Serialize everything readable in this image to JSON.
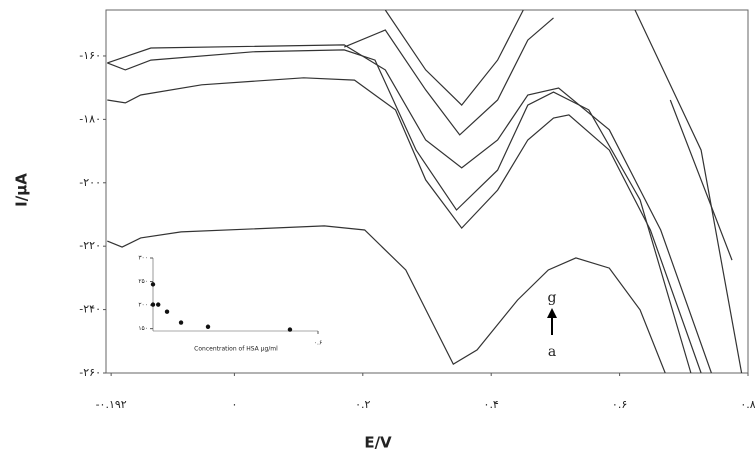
{
  "chart_data": [
    {
      "type": "line",
      "xlabel": "E/V",
      "ylabel": "I/μA",
      "xlim": [
        -0.2,
        0.8
      ],
      "ylim": [
        -260,
        -145.5
      ],
      "xticks": [
        {
          "value": -0.192,
          "label": "-۰.۱۹۲"
        },
        {
          "value": 0,
          "label": "۰"
        },
        {
          "value": 0.2,
          "label": "۰.۲"
        },
        {
          "value": 0.4,
          "label": "۰.۴"
        },
        {
          "value": 0.6,
          "label": "۰.۶"
        },
        {
          "value": 0.8,
          "label": "۰.۸"
        }
      ],
      "yticks": [
        {
          "value": -160,
          "label": "-۱۶۰"
        },
        {
          "value": -180,
          "label": "-۱۸۰"
        },
        {
          "value": -200,
          "label": "-۲۰۰"
        },
        {
          "value": -220,
          "label": "-۲۲۰"
        },
        {
          "value": -240,
          "label": "-۲۴۰"
        },
        {
          "value": -260,
          "label": "-۲۶۰"
        }
      ],
      "series": [
        {
          "color": "#333333",
          "x": [
            -0.198,
            -0.175,
            -0.146,
            -0.083,
            0.14,
            0.203,
            0.267,
            0.314,
            0.341,
            0.378,
            0.441,
            0.489,
            0.532,
            0.584,
            0.632,
            0.671
          ],
          "values": [
            -218.4,
            -220.3,
            -217.4,
            -215.5,
            -213.6,
            -214.9,
            -227.5,
            -246.4,
            -257.2,
            -252.7,
            -237,
            -227.5,
            -223.7,
            -226.9,
            -240.1,
            -260
          ]
        },
        {
          "color": "#333333",
          "x": [
            -0.198,
            -0.17,
            -0.146,
            -0.051,
            0.108,
            0.187,
            0.251,
            0.298,
            0.354,
            0.41,
            0.457,
            0.497,
            0.521,
            0.584,
            0.648,
            0.727
          ],
          "values": [
            -173.9,
            -174.8,
            -172.3,
            -169.1,
            -166.9,
            -167.6,
            -177,
            -199.1,
            -214.3,
            -202.3,
            -186.5,
            -179.6,
            -178.6,
            -189.7,
            -214.9,
            -260
          ]
        },
        {
          "color": "#333333",
          "x": [
            -0.198,
            -0.17,
            -0.13,
            0.029,
            0.171,
            0.219,
            0.283,
            0.346,
            0.41,
            0.457,
            0.497,
            0.552,
            0.632,
            0.711
          ],
          "values": [
            -162.2,
            -164.4,
            -161.3,
            -158.7,
            -158.1,
            -161.3,
            -189.7,
            -208.6,
            -196,
            -175.5,
            -171.4,
            -177,
            -205.4,
            -260
          ]
        },
        {
          "color": "#333333",
          "x": [
            -0.198,
            -0.13,
            0.171,
            0.235,
            0.298,
            0.354,
            0.41,
            0.457,
            0.505,
            0.584,
            0.664,
            0.743
          ],
          "values": [
            -162.2,
            -157.5,
            -156.5,
            -164.4,
            -186.5,
            -195.3,
            -186.5,
            -172.3,
            -170.1,
            -183.3,
            -214.9,
            -260
          ]
        },
        {
          "color": "#333333",
          "x": [
            0.171,
            0.235,
            0.298,
            0.351,
            0.41,
            0.457,
            0.497,
            0.513,
            0.624,
            0.727,
            0.79
          ],
          "values": [
            -157.2,
            -151.8,
            -170.7,
            -184.9,
            -173.9,
            -155,
            -148,
            null,
            -145.5,
            -189.7,
            -260
          ]
        },
        {
          "color": "#333333",
          "x": [
            0.235,
            0.298,
            0.354,
            0.41,
            0.45,
            0.584,
            0.679,
            0.775
          ],
          "values": [
            -145.5,
            -164.4,
            -175.5,
            -161.3,
            -145.5,
            null,
            -173.9,
            -224.4
          ]
        }
      ],
      "annotations": [
        "g",
        "a"
      ]
    },
    {
      "type": "scatter",
      "xlabel": "Concentration of HSA μg/ml",
      "xlim": [
        0,
        0.6
      ],
      "ylim": [
        145,
        300
      ],
      "xticks": [
        {
          "value": 0.6,
          "label": "۰.۶"
        }
      ],
      "yticks": [
        {
          "value": 300,
          "label": "۳۰۰"
        },
        {
          "value": 250,
          "label": "۲۵۰"
        },
        {
          "value": 200,
          "label": "۲۰۰"
        },
        {
          "value": 150,
          "label": "۱۵۰"
        }
      ],
      "color": "#111111",
      "x": [
        0,
        0,
        0.019,
        0.051,
        0.102,
        0.2,
        0.498
      ],
      "values": [
        244,
        201,
        201,
        186,
        163,
        154,
        148
      ]
    }
  ]
}
